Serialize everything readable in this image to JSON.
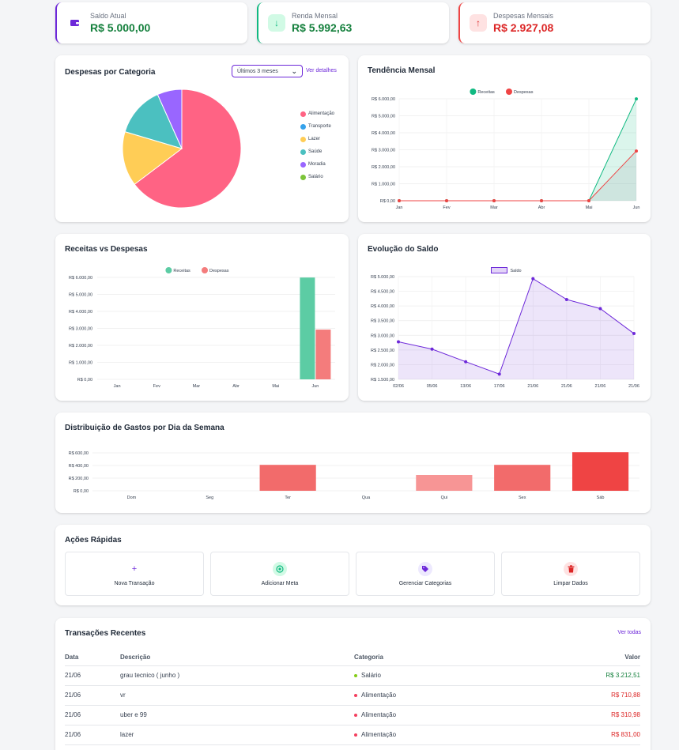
{
  "summary": [
    {
      "label": "Saldo Atual",
      "value": "R$ 5.000,00",
      "color": "#15803d",
      "accent": "#6d28d9",
      "icon": "wallet-icon"
    },
    {
      "label": "Renda Mensal",
      "value": "R$ 5.992,63",
      "color": "#15803d",
      "accent": "#10b981",
      "icon": "arrow-down-icon"
    },
    {
      "label": "Despesas Mensais",
      "value": "R$ 2.927,08",
      "color": "#dc2626",
      "accent": "#ef4444",
      "icon": "arrow-up-icon"
    }
  ],
  "category_card": {
    "title": "Despesas por Categoria",
    "period": "Últimos 3 meses",
    "details_link": "Ver detalhes"
  },
  "monthly_trend": {
    "title": "Tendência Mensal"
  },
  "income_vs_expense": {
    "title": "Receitas vs Despesas"
  },
  "balance_evolution": {
    "title": "Evolução do Saldo"
  },
  "weekday": {
    "title": "Distribuição de Gastos por Dia da Semana"
  },
  "quick_actions": {
    "title": "Ações Rápidas",
    "items": [
      {
        "label": "Nova Transação",
        "icon": "plus-icon",
        "color": "#6d28d9",
        "bg": "#ffffff"
      },
      {
        "label": "Adicionar Meta",
        "icon": "target-icon",
        "color": "#10b981",
        "bg": "#d1fae5"
      },
      {
        "label": "Gerenciar Categorias",
        "icon": "tag-icon",
        "color": "#6d28d9",
        "bg": "#ede9fe"
      },
      {
        "label": "Limpar Dados",
        "icon": "trash-icon",
        "color": "#dc2626",
        "bg": "#fee2e2"
      }
    ]
  },
  "transactions": {
    "title": "Transações Recentes",
    "view_all": "Ver todas",
    "headers": {
      "date": "Data",
      "description": "Descrição",
      "category": "Categoria",
      "amount": "Valor"
    },
    "rows": [
      {
        "date": "21/06",
        "description": "grau tecnico ( junho )",
        "category": "Salário",
        "cat_color": "#84cc16",
        "amount": "R$ 3.212,51",
        "amount_color": "#15803d"
      },
      {
        "date": "21/06",
        "description": "vr",
        "category": "Alimentação",
        "cat_color": "#f43f5e",
        "amount": "R$ 710,88",
        "amount_color": "#dc2626"
      },
      {
        "date": "21/06",
        "description": "uber e 99",
        "category": "Alimentação",
        "cat_color": "#f43f5e",
        "amount": "R$ 310,98",
        "amount_color": "#dc2626"
      },
      {
        "date": "21/06",
        "description": "lazer",
        "category": "Alimentação",
        "cat_color": "#f43f5e",
        "amount": "R$ 831,00",
        "amount_color": "#dc2626"
      }
    ]
  },
  "chart_data": [
    {
      "type": "pie",
      "name": "Despesas por Categoria",
      "labels": [
        "Alimentação",
        "Transporte",
        "Lazer",
        "Saúde",
        "Moradia",
        "Salário"
      ],
      "colors": [
        "#ff6384",
        "#36a2eb",
        "#ffcd56",
        "#4bc0c0",
        "#9966ff",
        "#7cc43a"
      ],
      "values": [
        64.7,
        0,
        14.9,
        13.7,
        6.7,
        0
      ],
      "legend": "right"
    },
    {
      "type": "area",
      "name": "Tendência Mensal",
      "categories": [
        "Jan",
        "Fev",
        "Mar",
        "Abr",
        "Mai",
        "Jun"
      ],
      "series": [
        {
          "name": "Receitas",
          "color": "#10b981",
          "values": [
            0,
            0,
            0,
            0,
            0,
            5992.63
          ]
        },
        {
          "name": "Despesas",
          "color": "#ef4444",
          "values": [
            0,
            0,
            0,
            0,
            0,
            2927.08
          ]
        }
      ],
      "ylim": [
        0,
        6000
      ],
      "yticks": [
        "R$ 0,00",
        "R$ 1.000,00",
        "R$ 2.000,00",
        "R$ 3.000,00",
        "R$ 4.000,00",
        "R$ 5.000,00",
        "R$ 6.000,00"
      ],
      "legend": "top"
    },
    {
      "type": "bar",
      "name": "Receitas vs Despesas",
      "categories": [
        "Jan",
        "Fev",
        "Mar",
        "Abr",
        "Mai",
        "Jun"
      ],
      "series": [
        {
          "name": "Receitas",
          "color": "#5ccca4",
          "values": [
            0,
            0,
            0,
            0,
            0,
            5992.63
          ]
        },
        {
          "name": "Despesas",
          "color": "#f47c7c",
          "values": [
            0,
            0,
            0,
            0,
            0,
            2927.08
          ]
        }
      ],
      "ylim": [
        0,
        6000
      ],
      "yticks": [
        "R$ 0,00",
        "R$ 1.000,00",
        "R$ 2.000,00",
        "R$ 3.000,00",
        "R$ 4.000,00",
        "R$ 5.000,00",
        "R$ 6.000,00"
      ],
      "legend": "top"
    },
    {
      "type": "area",
      "name": "Evolução do Saldo",
      "categories": [
        "02/06",
        "05/06",
        "13/06",
        "17/06",
        "21/06",
        "21/06",
        "21/06",
        "21/06"
      ],
      "series": [
        {
          "name": "Saldo",
          "color": "#6d28d9",
          "values": [
            2780,
            2530,
            2100,
            1680,
            4930,
            4220,
            3910,
            3060
          ]
        }
      ],
      "ylim": [
        1500,
        5000
      ],
      "yticks": [
        "R$ 1.500,00",
        "R$ 2.000,00",
        "R$ 2.500,00",
        "R$ 3.000,00",
        "R$ 3.500,00",
        "R$ 4.000,00",
        "R$ 4.500,00",
        "R$ 5.000,00"
      ],
      "legend": "top"
    },
    {
      "type": "bar",
      "name": "Distribuição de Gastos por Dia da Semana",
      "categories": [
        "Dom",
        "Seg",
        "Ter",
        "Qua",
        "Qui",
        "Sex",
        "Sáb"
      ],
      "values": [
        0,
        0,
        410,
        0,
        250,
        410,
        610
      ],
      "colors": [
        "#f47c7c",
        "#f47c7c",
        "#f26b6b",
        "#f47c7c",
        "#f79595",
        "#f26b6b",
        "#ef4444"
      ],
      "ylim": [
        0,
        600
      ],
      "yticks": [
        "R$ 0,00",
        "R$ 200,00",
        "R$ 400,00",
        "R$ 600,00"
      ]
    }
  ]
}
